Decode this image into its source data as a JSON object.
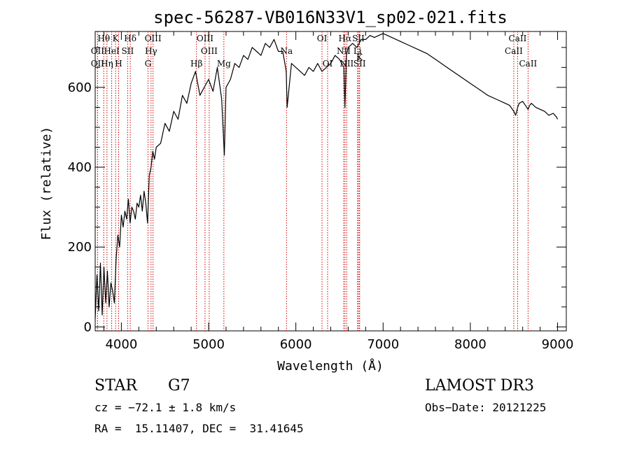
{
  "chart_data": {
    "type": "line",
    "title": "spec-56287-VB016N33V1_sp02-021.fits",
    "xlabel": "Wavelength (Å)",
    "ylabel": "Flux (relative)",
    "xlim": [
      3700,
      9100
    ],
    "ylim": [
      -10,
      740
    ],
    "xticks": [
      4000,
      5000,
      6000,
      7000,
      8000,
      9000
    ],
    "yticks": [
      0,
      200,
      400,
      600
    ],
    "series": [
      {
        "name": "flux",
        "x": [
          3700,
          3720,
          3740,
          3760,
          3780,
          3800,
          3820,
          3840,
          3860,
          3880,
          3900,
          3920,
          3940,
          3960,
          3980,
          4000,
          4020,
          4040,
          4060,
          4080,
          4100,
          4120,
          4140,
          4160,
          4180,
          4200,
          4220,
          4240,
          4260,
          4280,
          4300,
          4320,
          4340,
          4360,
          4380,
          4400,
          4450,
          4500,
          4550,
          4600,
          4650,
          4700,
          4750,
          4800,
          4850,
          4900,
          4950,
          5000,
          5050,
          5100,
          5150,
          5180,
          5200,
          5250,
          5300,
          5350,
          5400,
          5450,
          5500,
          5550,
          5600,
          5650,
          5700,
          5750,
          5800,
          5850,
          5890,
          5900,
          5950,
          6000,
          6050,
          6100,
          6150,
          6200,
          6250,
          6300,
          6350,
          6400,
          6450,
          6500,
          6550,
          6563,
          6580,
          6600,
          6650,
          6700,
          6750,
          6800,
          6850,
          6900,
          6950,
          7000,
          7050,
          7100,
          7150,
          7200,
          7300,
          7400,
          7500,
          7600,
          7700,
          7800,
          7900,
          8000,
          8100,
          8200,
          8300,
          8400,
          8450,
          8498,
          8520,
          8542,
          8560,
          8600,
          8662,
          8680,
          8700,
          8750,
          8800,
          8850,
          8900,
          8950,
          8990,
          9000
        ],
        "values": [
          20,
          130,
          40,
          160,
          30,
          150,
          60,
          140,
          50,
          110,
          90,
          60,
          170,
          230,
          200,
          280,
          250,
          290,
          270,
          320,
          260,
          300,
          290,
          270,
          310,
          300,
          330,
          290,
          340,
          310,
          260,
          380,
          400,
          440,
          420,
          450,
          460,
          510,
          490,
          540,
          520,
          580,
          560,
          610,
          640,
          580,
          600,
          620,
          590,
          650,
          570,
          430,
          600,
          620,
          660,
          650,
          680,
          670,
          700,
          690,
          680,
          710,
          700,
          720,
          690,
          690,
          640,
          550,
          660,
          650,
          640,
          630,
          650,
          640,
          660,
          640,
          650,
          660,
          680,
          670,
          650,
          550,
          680,
          700,
          710,
          700,
          720,
          720,
          730,
          725,
          730,
          735,
          730,
          725,
          720,
          715,
          705,
          695,
          685,
          670,
          655,
          640,
          625,
          610,
          595,
          580,
          570,
          560,
          555,
          540,
          530,
          550,
          560,
          565,
          545,
          555,
          560,
          550,
          545,
          540,
          530,
          535,
          525,
          520
        ]
      }
    ],
    "spectral_lines": [
      {
        "label": "Hθ",
        "x": 3798,
        "row": 0
      },
      {
        "label": "OII",
        "x": 3727,
        "row": 1
      },
      {
        "label": "OII",
        "x": 3727,
        "row": 2
      },
      {
        "label": "K",
        "x": 3934,
        "row": 0
      },
      {
        "label": "HeI",
        "x": 3889,
        "row": 1
      },
      {
        "label": "Hη",
        "x": 3835,
        "row": 2
      },
      {
        "label": "H",
        "x": 3969,
        "row": 2
      },
      {
        "label": "Hδ",
        "x": 4102,
        "row": 0
      },
      {
        "label": "SII",
        "x": 4072,
        "row": 1
      },
      {
        "label": "OIII",
        "x": 4363,
        "row": 0
      },
      {
        "label": "Hγ",
        "x": 4340,
        "row": 1
      },
      {
        "label": "G",
        "x": 4305,
        "row": 2
      },
      {
        "label": "Hβ",
        "x": 4861,
        "row": 2
      },
      {
        "label": "OIII",
        "x": 4959,
        "row": 0
      },
      {
        "label": "OIII",
        "x": 5007,
        "row": 1
      },
      {
        "label": "Mg",
        "x": 5175,
        "row": 2
      },
      {
        "label": "Na",
        "x": 5893,
        "row": 1
      },
      {
        "label": "OI",
        "x": 6300,
        "row": 0
      },
      {
        "label": "OI",
        "x": 6364,
        "row": 2
      },
      {
        "label": "Hα",
        "x": 6563,
        "row": 0
      },
      {
        "label": "NII",
        "x": 6548,
        "row": 1
      },
      {
        "label": "NII",
        "x": 6583,
        "row": 2
      },
      {
        "label": "SII",
        "x": 6717,
        "row": 0
      },
      {
        "label": "Li",
        "x": 6707,
        "row": 1
      },
      {
        "label": "K",
        "x": 6730,
        "row": 1.5
      },
      {
        "label": "SII",
        "x": 6731,
        "row": 2
      },
      {
        "label": "CaII",
        "x": 8542,
        "row": 0
      },
      {
        "label": "CaII",
        "x": 8498,
        "row": 1
      },
      {
        "label": "CaII",
        "x": 8662,
        "row": 2
      }
    ]
  },
  "info": {
    "class": "STAR",
    "subclass": "G7",
    "survey": "LAMOST DR3",
    "redshift": "cz = −72.1 ± 1.8 km/s",
    "obs_date": "Obs−Date: 20121225",
    "coords": "RA =  15.11407, DEC =  31.41645"
  },
  "colors": {
    "line_marker": "#cc0000",
    "spectrum": "#000000",
    "axis": "#000000"
  }
}
